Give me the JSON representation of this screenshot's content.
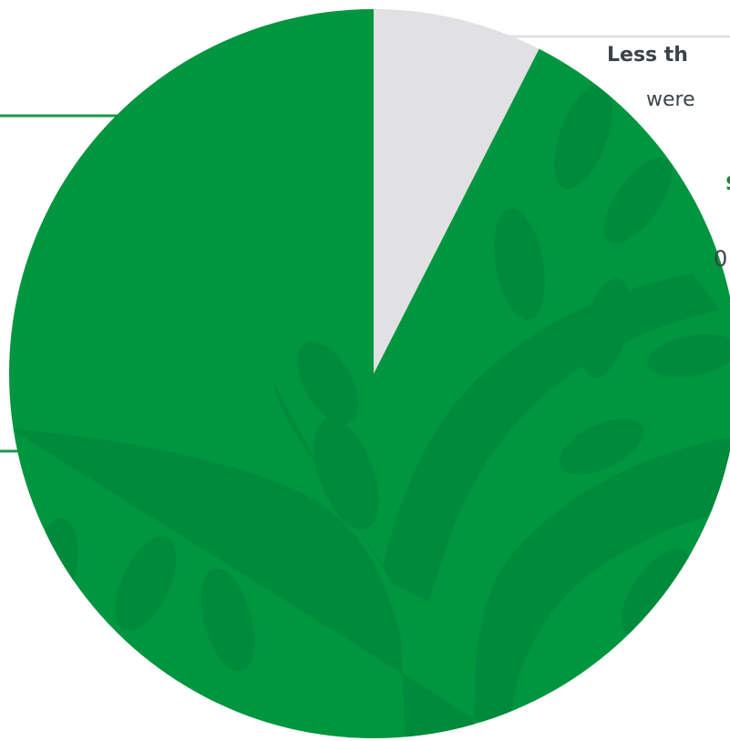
{
  "chart_data": {
    "type": "pie",
    "slices": [
      {
        "label": "Less th",
        "subtitle": "were",
        "value": 7.5,
        "color": "#e1e1e3"
      },
      {
        "label": "",
        "value": 92.5,
        "color": "#00953f"
      }
    ]
  },
  "left_callout": {
    "heading_fragment": "s",
    "text_fragment": "0"
  }
}
